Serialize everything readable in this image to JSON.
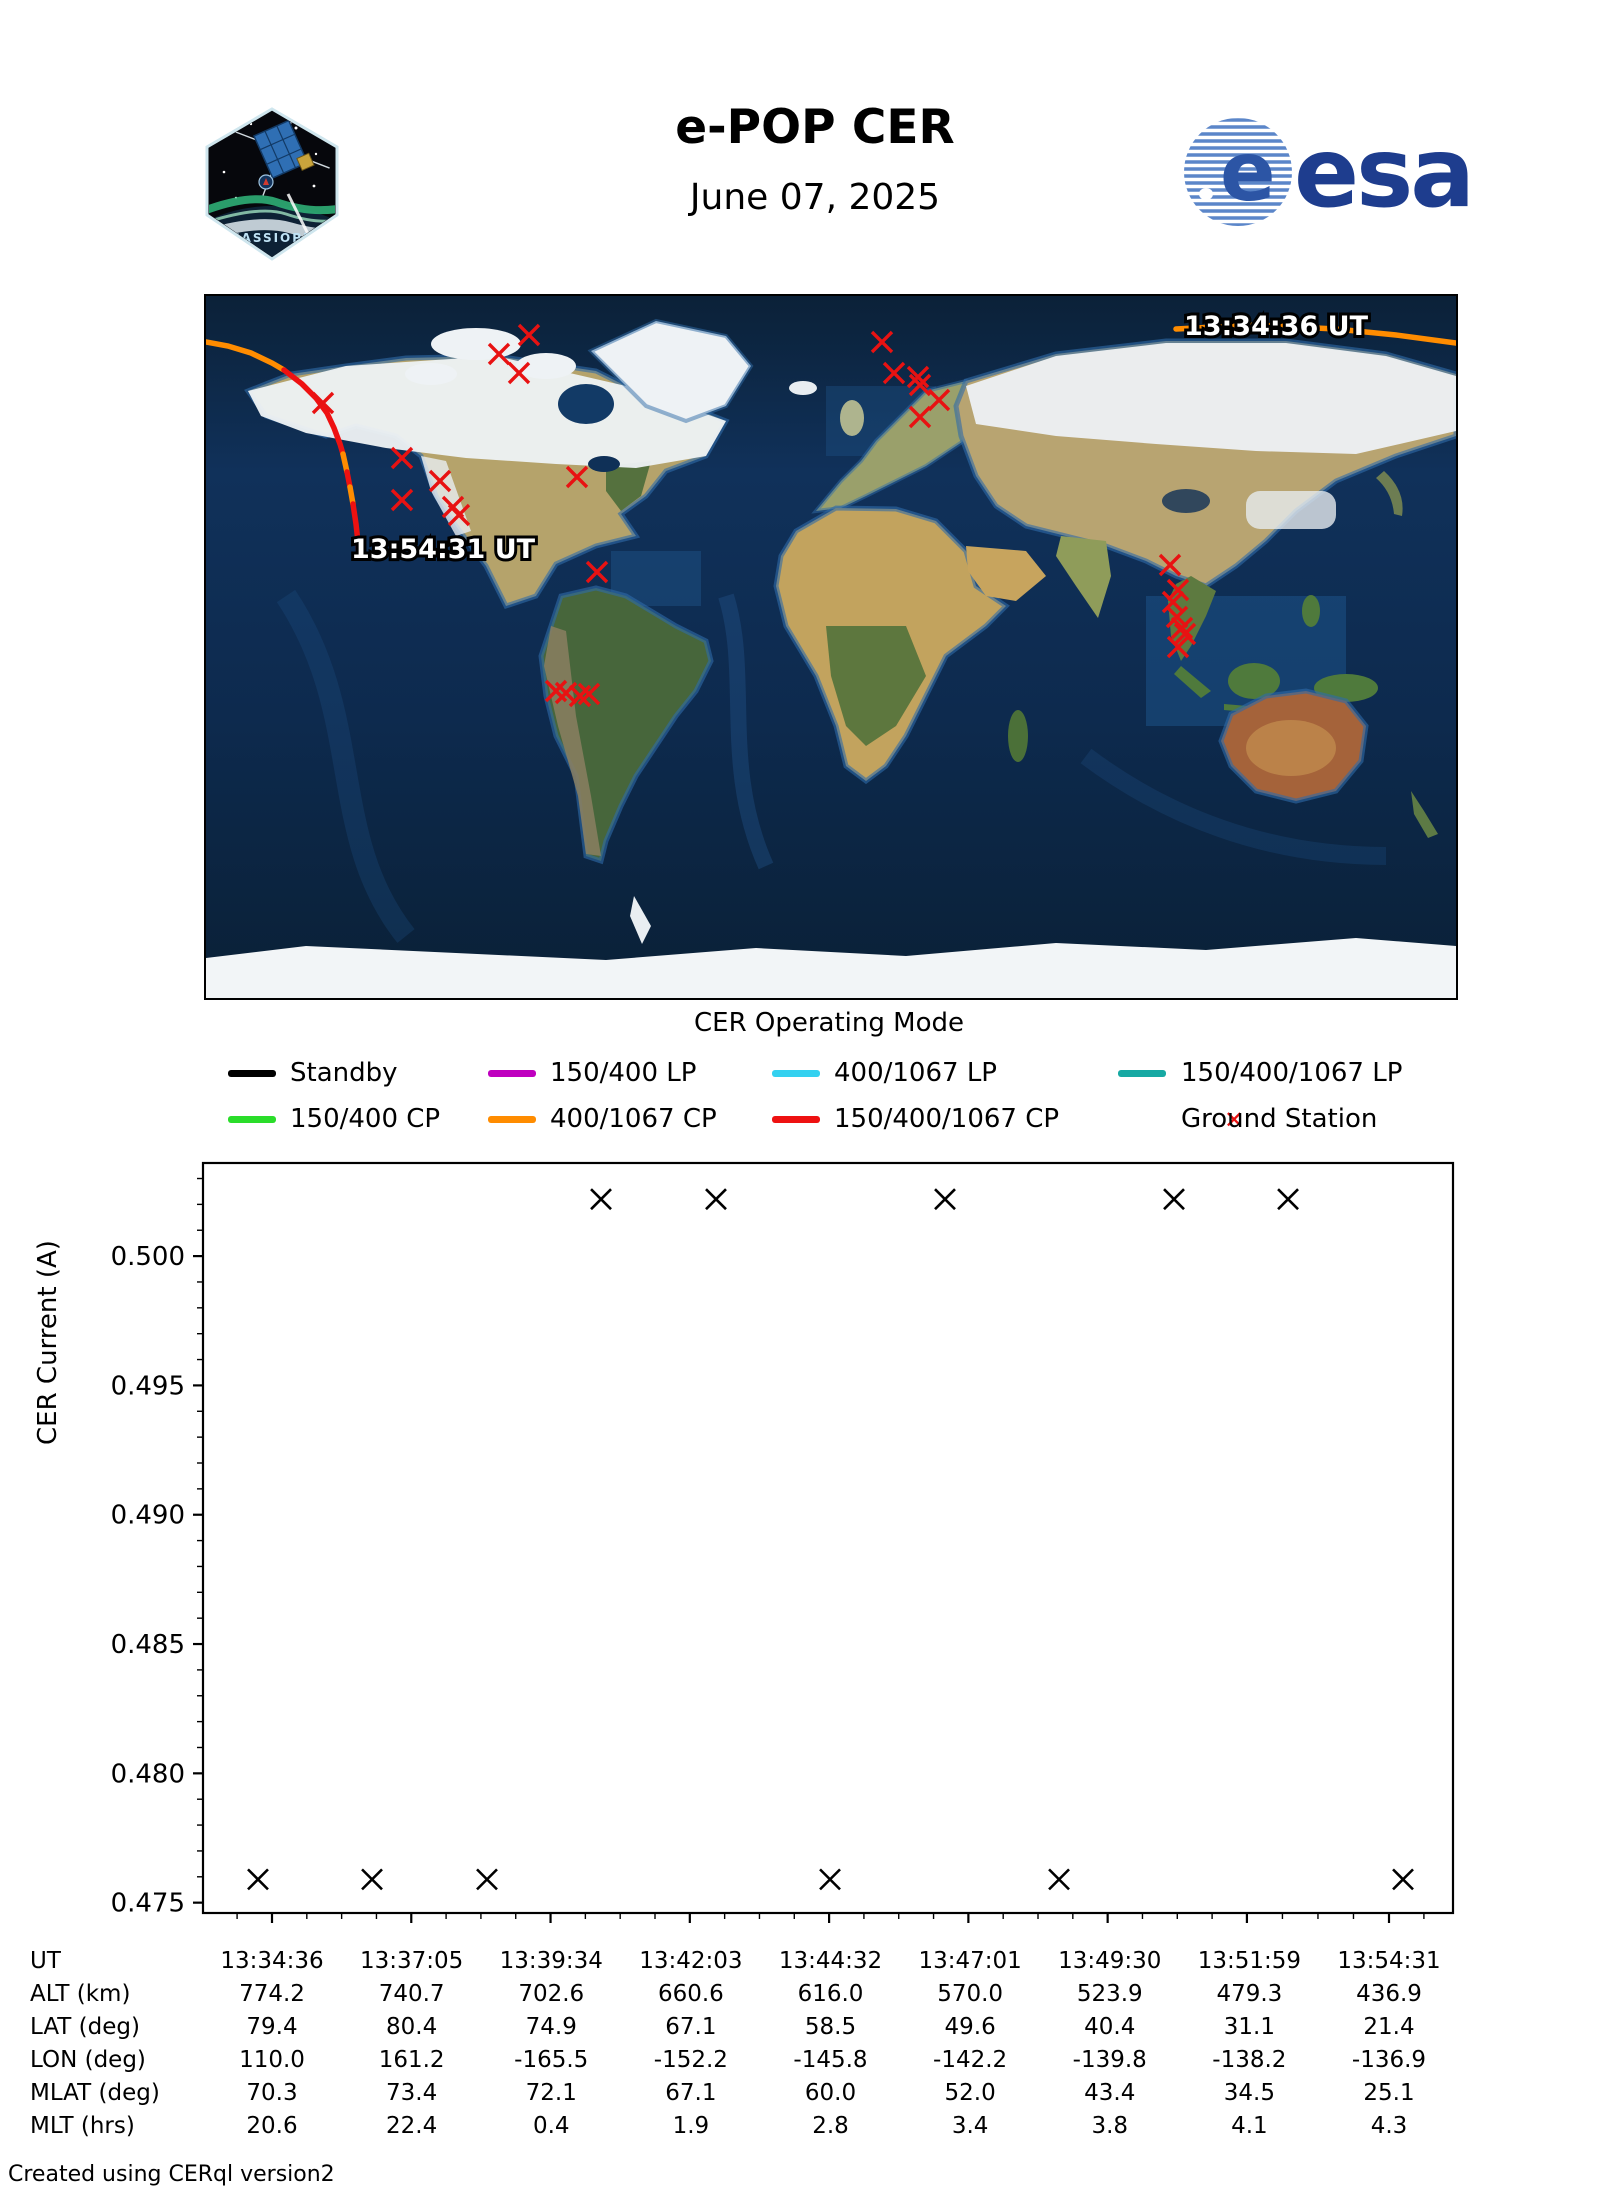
{
  "header": {
    "title": "e-POP CER",
    "date": "June 07, 2025",
    "patch_text": "CASSIOPE",
    "esa_wordmark": "esa",
    "esa_blue": "#1e3d8e"
  },
  "map": {
    "start_time_label": "13:34:36 UT",
    "end_time_label": "13:54:31 UT",
    "station_color": "#e81212",
    "track_segments": [
      {
        "mode": "400/1067 CP",
        "color": "#ff8c00",
        "points": [
          [
            0,
            46
          ],
          [
            22,
            50
          ],
          [
            45,
            57
          ],
          [
            66,
            67
          ],
          [
            78,
            74
          ]
        ]
      },
      {
        "mode": "150/400/1067 CP",
        "color": "#ee1111",
        "points": [
          [
            78,
            74
          ],
          [
            96,
            88
          ],
          [
            110,
            102
          ],
          [
            121,
            117
          ],
          [
            128,
            132
          ],
          [
            134,
            148
          ],
          [
            137,
            158
          ]
        ]
      },
      {
        "mode": "400/1067 CP",
        "color": "#ff8c00",
        "points": [
          [
            137,
            158
          ],
          [
            141,
            176
          ]
        ]
      },
      {
        "mode": "150/400/1067 CP",
        "color": "#ee1111",
        "points": [
          [
            141,
            176
          ],
          [
            144,
            191
          ]
        ]
      },
      {
        "mode": "400/1067 CP",
        "color": "#ff8c00",
        "points": [
          [
            144,
            191
          ],
          [
            147,
            208
          ]
        ]
      },
      {
        "mode": "150/400/1067 CP",
        "color": "#ee1111",
        "points": [
          [
            147,
            208
          ],
          [
            150,
            228
          ],
          [
            152,
            246
          ],
          [
            153,
            262
          ]
        ]
      },
      {
        "mode": "400/1067 CP",
        "color": "#ff8c00",
        "points": [
          [
            970,
            33
          ],
          [
            1050,
            29
          ],
          [
            1130,
            33
          ],
          [
            1190,
            39
          ],
          [
            1250,
            47
          ]
        ]
      }
    ],
    "ground_stations": [
      [
        323,
        39
      ],
      [
        293,
        58
      ],
      [
        313,
        77
      ],
      [
        117,
        107
      ],
      [
        196,
        162
      ],
      [
        234,
        185
      ],
      [
        196,
        204
      ],
      [
        247,
        211
      ],
      [
        253,
        219
      ],
      [
        371,
        181
      ],
      [
        391,
        276
      ],
      [
        350,
        395
      ],
      [
        360,
        397
      ],
      [
        374,
        400
      ],
      [
        383,
        398
      ],
      [
        676,
        46
      ],
      [
        688,
        77
      ],
      [
        712,
        81
      ],
      [
        714,
        89
      ],
      [
        733,
        104
      ],
      [
        714,
        121
      ],
      [
        964,
        269
      ],
      [
        972,
        294
      ],
      [
        967,
        306
      ],
      [
        971,
        321
      ],
      [
        976,
        332
      ],
      [
        979,
        338
      ],
      [
        972,
        351
      ]
    ]
  },
  "legend": {
    "title": "CER Operating Mode",
    "rows": [
      [
        {
          "label": "Standby",
          "color": "#000000",
          "kind": "line"
        },
        {
          "label": "150/400 LP",
          "color": "#bf00bf",
          "kind": "line"
        },
        {
          "label": "400/1067 LP",
          "color": "#33d1f0",
          "kind": "line"
        },
        {
          "label": "150/400/1067 LP",
          "color": "#17a9a3",
          "kind": "line"
        }
      ],
      [
        {
          "label": "150/400 CP",
          "color": "#2add2a",
          "kind": "line"
        },
        {
          "label": "400/1067 CP",
          "color": "#ff8c00",
          "kind": "line"
        },
        {
          "label": "150/400/1067 CP",
          "color": "#ee1111",
          "kind": "line"
        },
        {
          "label": "Ground Station",
          "color": "#e81212",
          "kind": "marker-x"
        }
      ]
    ]
  },
  "chart_data": {
    "type": "scatter",
    "ylabel": "CER Current (A)",
    "marker": "x",
    "marker_color": "#000000",
    "x_tick_labels": [
      "13:34:36",
      "13:37:05",
      "13:39:34",
      "13:42:03",
      "13:44:32",
      "13:47:01",
      "13:49:30",
      "13:51:59",
      "13:54:31"
    ],
    "x_tick_seconds": [
      0,
      149,
      298,
      447,
      596,
      745,
      894,
      1043,
      1195
    ],
    "t_seconds": [
      -15,
      107,
      230,
      352,
      475,
      597,
      720,
      842,
      965,
      1087,
      1210
    ],
    "values": [
      0.4759,
      0.4759,
      0.4759,
      0.5022,
      0.5022,
      0.4759,
      0.5022,
      0.4759,
      0.5022,
      0.5022,
      0.4759
    ],
    "y_ticks": [
      0.475,
      0.48,
      0.485,
      0.49,
      0.495,
      0.5
    ],
    "y_minor_step": 0.001,
    "ylim": [
      0.4746,
      0.5036
    ],
    "grid": false,
    "legend_position": "above-plot (shared with map)"
  },
  "table": {
    "rows": [
      {
        "label": "UT",
        "values": [
          "13:34:36",
          "13:37:05",
          "13:39:34",
          "13:42:03",
          "13:44:32",
          "13:47:01",
          "13:49:30",
          "13:51:59",
          "13:54:31"
        ]
      },
      {
        "label": "ALT (km)",
        "values": [
          "774.2",
          "740.7",
          "702.6",
          "660.6",
          "616.0",
          "570.0",
          "523.9",
          "479.3",
          "436.9"
        ]
      },
      {
        "label": "LAT (deg)",
        "values": [
          "79.4",
          "80.4",
          "74.9",
          "67.1",
          "58.5",
          "49.6",
          "40.4",
          "31.1",
          "21.4"
        ]
      },
      {
        "label": "LON (deg)",
        "values": [
          "110.0",
          "161.2",
          "-165.5",
          "-152.2",
          "-145.8",
          "-142.2",
          "-139.8",
          "-138.2",
          "-136.9"
        ]
      },
      {
        "label": "MLAT (deg)",
        "values": [
          "70.3",
          "73.4",
          "72.1",
          "67.1",
          "60.0",
          "52.0",
          "43.4",
          "34.5",
          "25.1"
        ]
      },
      {
        "label": "MLT (hrs)",
        "values": [
          "20.6",
          "22.4",
          "0.4",
          "1.9",
          "2.8",
          "3.4",
          "3.8",
          "4.1",
          "4.3"
        ]
      }
    ]
  },
  "footer": "Created using CERql version2"
}
